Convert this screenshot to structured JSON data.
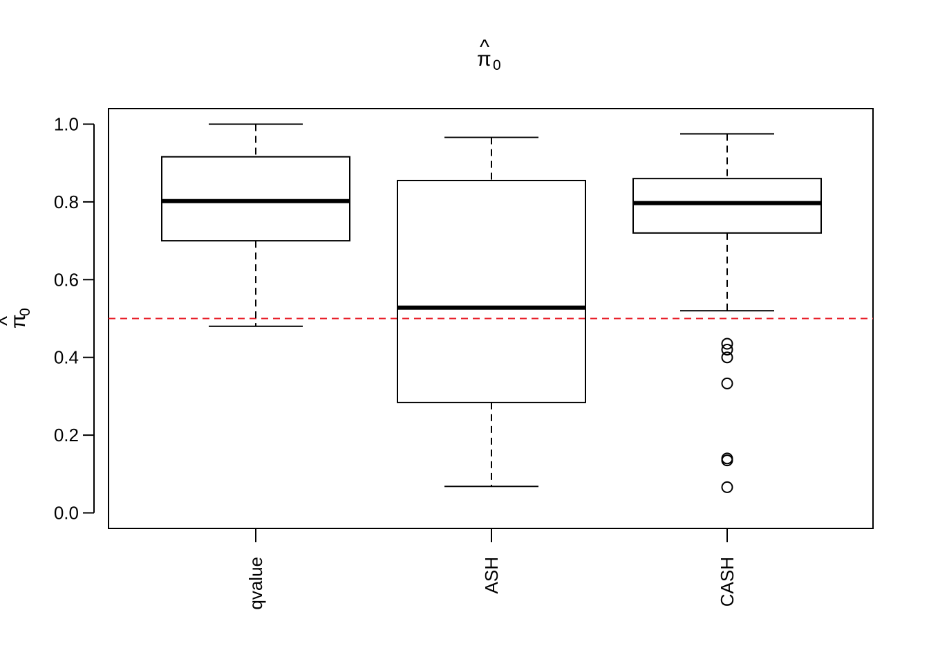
{
  "chart_data": {
    "type": "boxplot",
    "title": {
      "symbol": "π",
      "hat": "^",
      "subscript": "0"
    },
    "ylabel": {
      "symbol": "π",
      "hat": "^",
      "subscript": "0"
    },
    "categories": [
      "qvalue",
      "ASH",
      "CASH"
    ],
    "ylim": [
      -0.04,
      1.04
    ],
    "yticks": [
      "0.0",
      "0.2",
      "0.4",
      "0.6",
      "0.8",
      "1.0"
    ],
    "ytick_values": [
      0.0,
      0.2,
      0.4,
      0.6,
      0.8,
      1.0
    ],
    "boxes": [
      {
        "name": "qvalue",
        "whisker_low": 0.48,
        "q1": 0.7,
        "median": 0.802,
        "q3": 0.916,
        "whisker_high": 1.0,
        "outliers": []
      },
      {
        "name": "ASH",
        "whisker_low": 0.068,
        "q1": 0.284,
        "median": 0.528,
        "q3": 0.855,
        "whisker_high": 0.966,
        "outliers": []
      },
      {
        "name": "CASH",
        "whisker_low": 0.52,
        "q1": 0.72,
        "median": 0.797,
        "q3": 0.86,
        "whisker_high": 0.975,
        "outliers": [
          0.435,
          0.42,
          0.4,
          0.333,
          0.14,
          0.135,
          0.066
        ]
      }
    ],
    "reference_line": {
      "y": 0.5,
      "color": "#e8202a",
      "style": "dashed"
    },
    "colors": {
      "box": "#000000",
      "reference": "#e8202a"
    },
    "grid": false,
    "legend": "none"
  }
}
